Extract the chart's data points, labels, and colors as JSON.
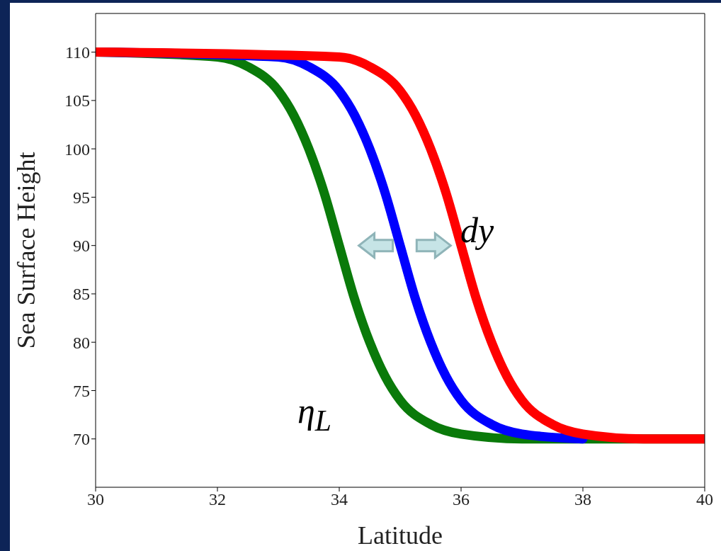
{
  "chart_data": {
    "type": "line",
    "xlabel": "Latitude",
    "ylabel": "Sea Surface Height",
    "xlim": [
      30,
      40
    ],
    "xticks": [
      30,
      32,
      34,
      36,
      38,
      40
    ],
    "ylim": [
      65,
      114
    ],
    "yticks": [
      70,
      75,
      80,
      85,
      90,
      95,
      100,
      105,
      110
    ],
    "grid": false,
    "legend": false,
    "marker": "none",
    "line_style": "solid",
    "annotations": [
      "dy",
      "η$_{L}$"
    ],
    "series": [
      {
        "color": "#0a7a0a",
        "x": [
          30,
          32,
          32.5,
          33,
          33.25,
          33.5,
          33.75,
          34,
          34.25,
          34.5,
          34.75,
          35,
          35.5,
          36,
          37,
          40
        ],
        "values": [
          110,
          109.5,
          108.5,
          106,
          103.5,
          100,
          95.5,
          90,
          84.5,
          80,
          76.5,
          74,
          71.5,
          70.5,
          70,
          70
        ]
      },
      {
        "color": "#0000ff",
        "x": [
          30,
          33,
          33.5,
          34,
          34.25,
          34.5,
          34.75,
          35,
          35.25,
          35.5,
          35.75,
          36,
          36.5,
          37,
          38
        ],
        "values": [
          110,
          109.5,
          108.5,
          106,
          103.5,
          100,
          95.5,
          90,
          84.5,
          80,
          76.5,
          74,
          71.5,
          70.5,
          70
        ]
      },
      {
        "color": "#ff0000",
        "x": [
          30,
          34,
          34.5,
          35,
          35.25,
          35.5,
          35.75,
          36,
          36.25,
          36.5,
          36.75,
          37,
          37.5,
          38,
          39,
          40
        ],
        "values": [
          110,
          109.5,
          108.5,
          106,
          103.5,
          100,
          95.5,
          90,
          84.5,
          80,
          76.5,
          74,
          71.5,
          70.5,
          70,
          70
        ]
      }
    ]
  }
}
